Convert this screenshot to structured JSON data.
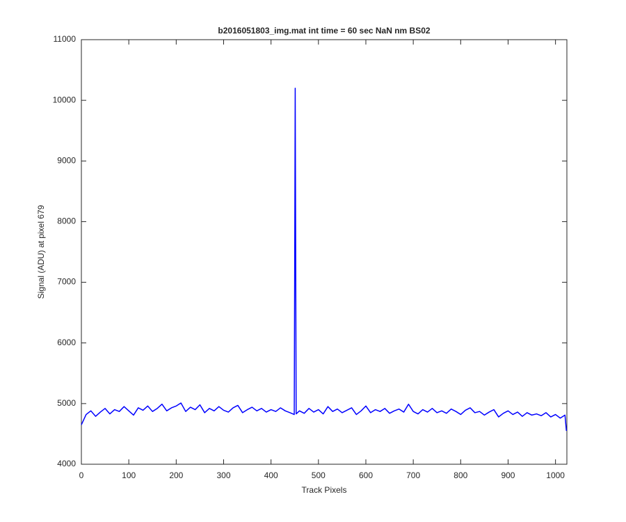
{
  "chart_data": {
    "type": "line",
    "title": "b2016051803_img.mat int time = 60 sec  NaN nm BS02",
    "x_label": "Track Pixels",
    "y_label": "Signal (ADU) at pixel 679",
    "x": [
      0,
      10,
      20,
      30,
      40,
      50,
      60,
      70,
      80,
      90,
      100,
      110,
      120,
      130,
      140,
      150,
      160,
      170,
      180,
      190,
      200,
      210,
      220,
      230,
      240,
      250,
      260,
      270,
      280,
      290,
      300,
      310,
      320,
      330,
      340,
      350,
      360,
      370,
      380,
      390,
      400,
      410,
      420,
      430,
      440,
      449,
      451,
      453,
      460,
      470,
      480,
      490,
      500,
      510,
      520,
      530,
      540,
      550,
      560,
      570,
      580,
      590,
      600,
      610,
      620,
      630,
      640,
      650,
      660,
      670,
      680,
      690,
      700,
      710,
      720,
      730,
      740,
      750,
      760,
      770,
      780,
      790,
      800,
      810,
      820,
      830,
      840,
      850,
      860,
      870,
      880,
      890,
      900,
      910,
      920,
      930,
      940,
      950,
      960,
      970,
      980,
      990,
      1000,
      1010,
      1020,
      1023
    ],
    "values": [
      4650,
      4820,
      4880,
      4790,
      4860,
      4920,
      4830,
      4900,
      4870,
      4950,
      4880,
      4810,
      4930,
      4890,
      4960,
      4870,
      4920,
      4990,
      4880,
      4930,
      4960,
      5010,
      4870,
      4940,
      4900,
      4980,
      4850,
      4920,
      4880,
      4950,
      4890,
      4860,
      4930,
      4970,
      4850,
      4900,
      4940,
      4880,
      4920,
      4860,
      4900,
      4870,
      4930,
      4880,
      4850,
      4820,
      10200,
      4830,
      4880,
      4840,
      4920,
      4860,
      4900,
      4830,
      4950,
      4870,
      4910,
      4850,
      4890,
      4930,
      4820,
      4880,
      4960,
      4850,
      4900,
      4870,
      4920,
      4840,
      4880,
      4910,
      4860,
      4990,
      4870,
      4830,
      4900,
      4860,
      4920,
      4850,
      4880,
      4840,
      4910,
      4870,
      4820,
      4890,
      4930,
      4850,
      4870,
      4810,
      4860,
      4900,
      4780,
      4840,
      4880,
      4820,
      4860,
      4790,
      4850,
      4810,
      4830,
      4800,
      4850,
      4780,
      4820,
      4760,
      4810,
      4550
    ],
    "color": "#0000ff",
    "xlim": [
      0,
      1024
    ],
    "xticks": [
      0,
      100,
      200,
      300,
      400,
      500,
      600,
      700,
      800,
      900,
      1000
    ],
    "ylim": [
      4000,
      11000
    ],
    "yticks": [
      4000,
      5000,
      6000,
      7000,
      8000,
      9000,
      10000,
      11000
    ],
    "grid": false
  }
}
